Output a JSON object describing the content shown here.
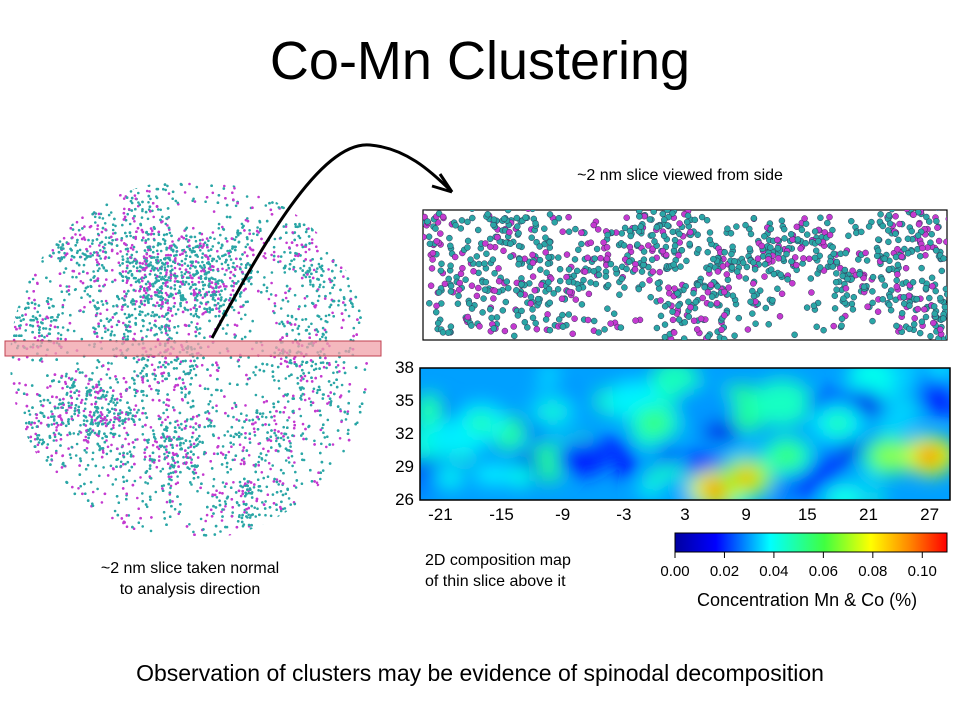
{
  "title": "Co-Mn Clustering",
  "side_view_caption": "~2 nm slice viewed from side",
  "left_caption_line1": "~2 nm slice taken normal",
  "left_caption_line2": "to analysis direction",
  "map_caption_line1": "2D composition map",
  "map_caption_line2": "of thin slice above it",
  "bottom_caption": "Observation of clusters may be evidence of spinodal decomposition",
  "colors": {
    "co_atoms": "#2aa6a6",
    "mn_atoms": "#c43ad0",
    "slice_band": "#f0a0a8"
  },
  "chart_data": {
    "type": "heatmap",
    "x_ticks": [
      "-21",
      "-15",
      "-9",
      "-3",
      "3",
      "9",
      "15",
      "21",
      "27"
    ],
    "y_ticks": [
      "38",
      "35",
      "32",
      "29",
      "26"
    ],
    "xlim": [
      -23,
      29
    ],
    "ylim": [
      26,
      38
    ],
    "colorbar": {
      "ticks": [
        "0.00",
        "0.02",
        "0.04",
        "0.06",
        "0.08",
        "0.10"
      ],
      "label": "Concentration Mn & Co (%)",
      "range": [
        0,
        0.11
      ]
    },
    "hotspots": [
      {
        "x": -17,
        "y": 33,
        "v": 0.05
      },
      {
        "x": -10,
        "y": 34,
        "v": 0.045
      },
      {
        "x": 0,
        "y": 33,
        "v": 0.06
      },
      {
        "x": 6,
        "y": 27,
        "v": 0.1
      },
      {
        "x": 9,
        "y": 28,
        "v": 0.09
      },
      {
        "x": 13,
        "y": 30,
        "v": 0.06
      },
      {
        "x": 18,
        "y": 33,
        "v": 0.05
      },
      {
        "x": 23,
        "y": 30,
        "v": 0.07
      },
      {
        "x": 27,
        "y": 30,
        "v": 0.1
      },
      {
        "x": -20,
        "y": 28,
        "v": 0.04
      }
    ]
  }
}
